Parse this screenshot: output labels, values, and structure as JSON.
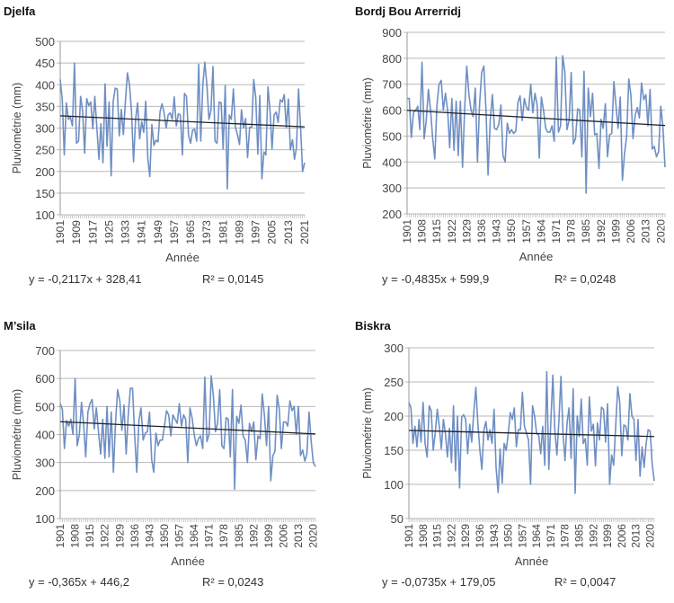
{
  "chart_data": [
    {
      "type": "line",
      "title": "Djelfa",
      "xlabel": "Année",
      "ylabel": "Pluviométrie (mm)",
      "ylim": [
        100,
        500
      ],
      "yticks": [
        100,
        150,
        200,
        250,
        300,
        350,
        400,
        450,
        500
      ],
      "x_start": 1901,
      "xtick_labels": [
        "1901",
        "1909",
        "1917",
        "1925",
        "1933",
        "1941",
        "1949",
        "1957",
        "1965",
        "1973",
        "1981",
        "1989",
        "1997",
        "2005",
        "2013",
        "2021"
      ],
      "grid": true,
      "series_color": "#6f8fc4",
      "trend_color": "#222222",
      "trend": {
        "slope": -0.2117,
        "intercept": 328.41
      },
      "equation": "y  = -0,2117x + 328,41",
      "r2": "R² = 0,0145",
      "values": [
        412,
        365,
        238,
        358,
        320,
        325,
        305,
        450,
        265,
        270,
        373,
        340,
        242,
        368,
        352,
        360,
        298,
        373,
        300,
        228,
        310,
        220,
        402,
        258,
        360,
        190,
        360,
        392,
        390,
        282,
        343,
        285,
        360,
        427,
        400,
        340,
        222,
        320,
        358,
        275,
        315,
        290,
        362,
        230,
        188,
        308,
        260,
        272,
        268,
        338,
        356,
        335,
        300,
        330,
        335,
        320,
        372,
        305,
        333,
        330,
        238,
        380,
        373,
        283,
        265,
        295,
        297,
        270,
        447,
        270,
        400,
        452,
        400,
        320,
        340,
        442,
        270,
        265,
        360,
        358,
        252,
        398,
        160,
        330,
        320,
        390,
        302,
        285,
        262,
        342,
        300,
        322,
        232,
        302,
        302,
        412,
        370,
        240,
        375,
        183,
        245,
        238,
        395,
        340,
        252,
        330,
        337,
        313,
        365,
        360,
        377,
        300,
        367,
        250,
        273,
        228,
        255,
        390,
        300,
        200,
        220
      ]
    },
    {
      "type": "line",
      "title": "Bordj Bou Arrerridj",
      "xlabel": "Année",
      "ylabel": "Pluviométrie (mm)",
      "ylim": [
        200,
        900
      ],
      "yticks": [
        200,
        300,
        400,
        500,
        600,
        700,
        800,
        900
      ],
      "x_start": 1901,
      "xtick_labels": [
        "1901",
        "1908",
        "1915",
        "1922",
        "1929",
        "1936",
        "1943",
        "1950",
        "1957",
        "1964",
        "1971",
        "1978",
        "1985",
        "1992",
        "1999",
        "2006",
        "2013",
        "2020"
      ],
      "grid": true,
      "series_color": "#6f8fc4",
      "trend_color": "#222222",
      "trend": {
        "slope": -0.4835,
        "intercept": 599.9
      },
      "equation": "y  = -0,4835x + 599,9",
      "r2": "R² = 0,0248",
      "values": [
        645,
        645,
        495,
        590,
        600,
        615,
        525,
        785,
        490,
        560,
        680,
        600,
        490,
        412,
        620,
        700,
        715,
        600,
        665,
        600,
        455,
        645,
        445,
        635,
        425,
        635,
        380,
        600,
        770,
        660,
        600,
        575,
        685,
        400,
        620,
        745,
        770,
        600,
        350,
        560,
        660,
        530,
        525,
        545,
        620,
        425,
        400,
        550,
        510,
        525,
        510,
        520,
        630,
        655,
        560,
        645,
        610,
        600,
        700,
        590,
        665,
        620,
        415,
        650,
        600,
        530,
        515,
        515,
        540,
        480,
        805,
        515,
        540,
        810,
        750,
        525,
        560,
        745,
        470,
        490,
        605,
        600,
        420,
        750,
        280,
        685,
        575,
        665,
        505,
        510,
        375,
        565,
        530,
        625,
        420,
        505,
        510,
        710,
        620,
        530,
        650,
        330,
        430,
        500,
        720,
        660,
        490,
        580,
        610,
        570,
        705,
        640,
        660,
        540,
        680,
        450,
        460,
        420,
        440,
        615,
        540,
        380
      ]
    },
    {
      "type": "line",
      "title": "M’sila",
      "xlabel": "Année",
      "ylabel": "Pluviométrie (mm)",
      "ylim": [
        100,
        700
      ],
      "yticks": [
        100,
        200,
        300,
        400,
        500,
        600,
        700
      ],
      "x_start": 1901,
      "xtick_labels": [
        "1901",
        "1908",
        "1915",
        "1922",
        "1929",
        "1936",
        "1943",
        "1950",
        "1957",
        "1964",
        "1971",
        "1978",
        "1985",
        "1992",
        "1999",
        "2006",
        "2013",
        "2020"
      ],
      "grid": true,
      "series_color": "#6f8fc4",
      "trend_color": "#222222",
      "trend": {
        "slope": -0.365,
        "intercept": 446.2
      },
      "equation": "y  = -0,365x + 446,2",
      "r2": "R² = 0,0243",
      "values": [
        510,
        490,
        350,
        450,
        430,
        455,
        400,
        600,
        360,
        400,
        515,
        440,
        320,
        480,
        510,
        525,
        420,
        495,
        410,
        330,
        455,
        315,
        500,
        320,
        480,
        265,
        440,
        560,
        520,
        415,
        505,
        330,
        470,
        565,
        565,
        400,
        265,
        450,
        495,
        380,
        405,
        410,
        480,
        310,
        265,
        405,
        360,
        380,
        380,
        430,
        485,
        470,
        395,
        470,
        455,
        440,
        510,
        430,
        470,
        455,
        300,
        495,
        460,
        400,
        360,
        385,
        395,
        350,
        605,
        375,
        400,
        610,
        540,
        410,
        440,
        560,
        360,
        350,
        460,
        455,
        320,
        560,
        205,
        465,
        440,
        505,
        395,
        380,
        300,
        440,
        410,
        445,
        310,
        395,
        385,
        545,
        470,
        360,
        500,
        235,
        325,
        340,
        540,
        490,
        350,
        445,
        445,
        430,
        520,
        485,
        500,
        400,
        500,
        325,
        345,
        305,
        330,
        480,
        375,
        300,
        285
      ]
    },
    {
      "type": "line",
      "title": "Biskra",
      "xlabel": "Année",
      "ylabel": "Pluviométrie (mm)",
      "ylim": [
        50,
        300
      ],
      "yticks": [
        50,
        100,
        150,
        200,
        250,
        300
      ],
      "x_start": 1901,
      "xtick_labels": [
        "1901",
        "1908",
        "1915",
        "1922",
        "1929",
        "1936",
        "1943",
        "1950",
        "1957",
        "1964",
        "1971",
        "1978",
        "1985",
        "1992",
        "1999",
        "2006",
        "2013",
        "2020"
      ],
      "grid": true,
      "series_color": "#6f8fc4",
      "trend_color": "#222222",
      "trend": {
        "slope": -0.0735,
        "intercept": 179.05
      },
      "equation": "y  = -0,0735x + 179,05",
      "r2": "R² = 0,0047",
      "values": [
        220,
        212,
        160,
        185,
        155,
        195,
        162,
        220,
        160,
        140,
        215,
        208,
        150,
        175,
        210,
        185,
        152,
        195,
        175,
        140,
        182,
        132,
        215,
        120,
        200,
        95,
        198,
        202,
        195,
        145,
        188,
        162,
        205,
        242,
        190,
        150,
        122,
        180,
        192,
        165,
        180,
        160,
        210,
        125,
        88,
        152,
        102,
        160,
        150,
        175,
        205,
        195,
        212,
        155,
        180,
        180,
        235,
        185,
        175,
        165,
        100,
        215,
        200,
        175,
        172,
        145,
        185,
        128,
        265,
        122,
        190,
        260,
        180,
        143,
        195,
        258,
        175,
        135,
        190,
        212,
        138,
        240,
        87,
        200,
        170,
        225,
        160,
        167,
        128,
        228,
        178,
        188,
        127,
        190,
        165,
        213,
        210,
        162,
        218,
        100,
        143,
        128,
        185,
        243,
        220,
        142,
        187,
        185,
        165,
        233,
        200,
        195,
        135,
        195,
        112,
        155,
        125,
        160,
        180,
        178,
        130,
        105
      ]
    }
  ]
}
